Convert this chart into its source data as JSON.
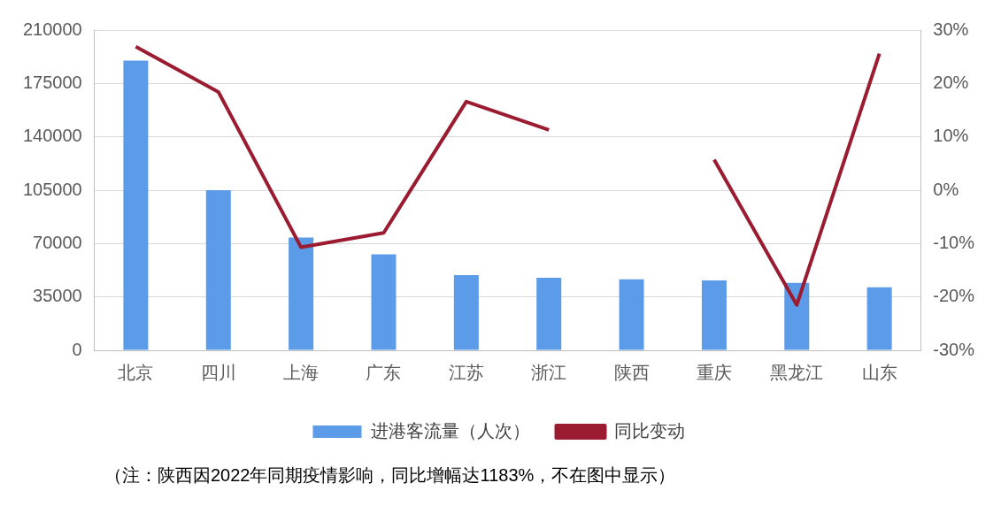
{
  "chart_data": {
    "type": "bar",
    "categories": [
      "北京",
      "四川",
      "上海",
      "广东",
      "江苏",
      "浙江",
      "陕西",
      "重庆",
      "黑龙江",
      "山东"
    ],
    "series": [
      {
        "name": "进港客流量（人次）",
        "color": "#5b9be8",
        "values": [
          190000,
          105000,
          74000,
          63000,
          49300,
          47600,
          46500,
          45900,
          44200,
          41300
        ]
      },
      {
        "name": "同比变动",
        "type": "line",
        "axis": "y2",
        "color": "#9b1b30",
        "values": [
          26.9,
          18.4,
          -10.7,
          -8.0,
          16.6,
          11.3,
          null,
          5.7,
          -21.5,
          25.6
        ]
      }
    ],
    "ylim": [
      0,
      210000
    ],
    "yticks": [
      0,
      35000,
      70000,
      105000,
      140000,
      175000,
      210000
    ],
    "y2lim": [
      -30,
      30
    ],
    "y2ticks": [
      {
        "value": -30,
        "label": "-30%"
      },
      {
        "value": -20,
        "label": "-20%"
      },
      {
        "value": -10,
        "label": "-10%"
      },
      {
        "value": 0,
        "label": "0%"
      },
      {
        "value": 10,
        "label": "10%"
      },
      {
        "value": 20,
        "label": "20%"
      },
      {
        "value": 30,
        "label": "30%"
      }
    ],
    "grid": "y",
    "legend": "bottom",
    "marker": "none",
    "annotations": [
      "（注：陕西因2022年同期疫情影响，同比增幅达1183%，不在图中显示）"
    ]
  }
}
